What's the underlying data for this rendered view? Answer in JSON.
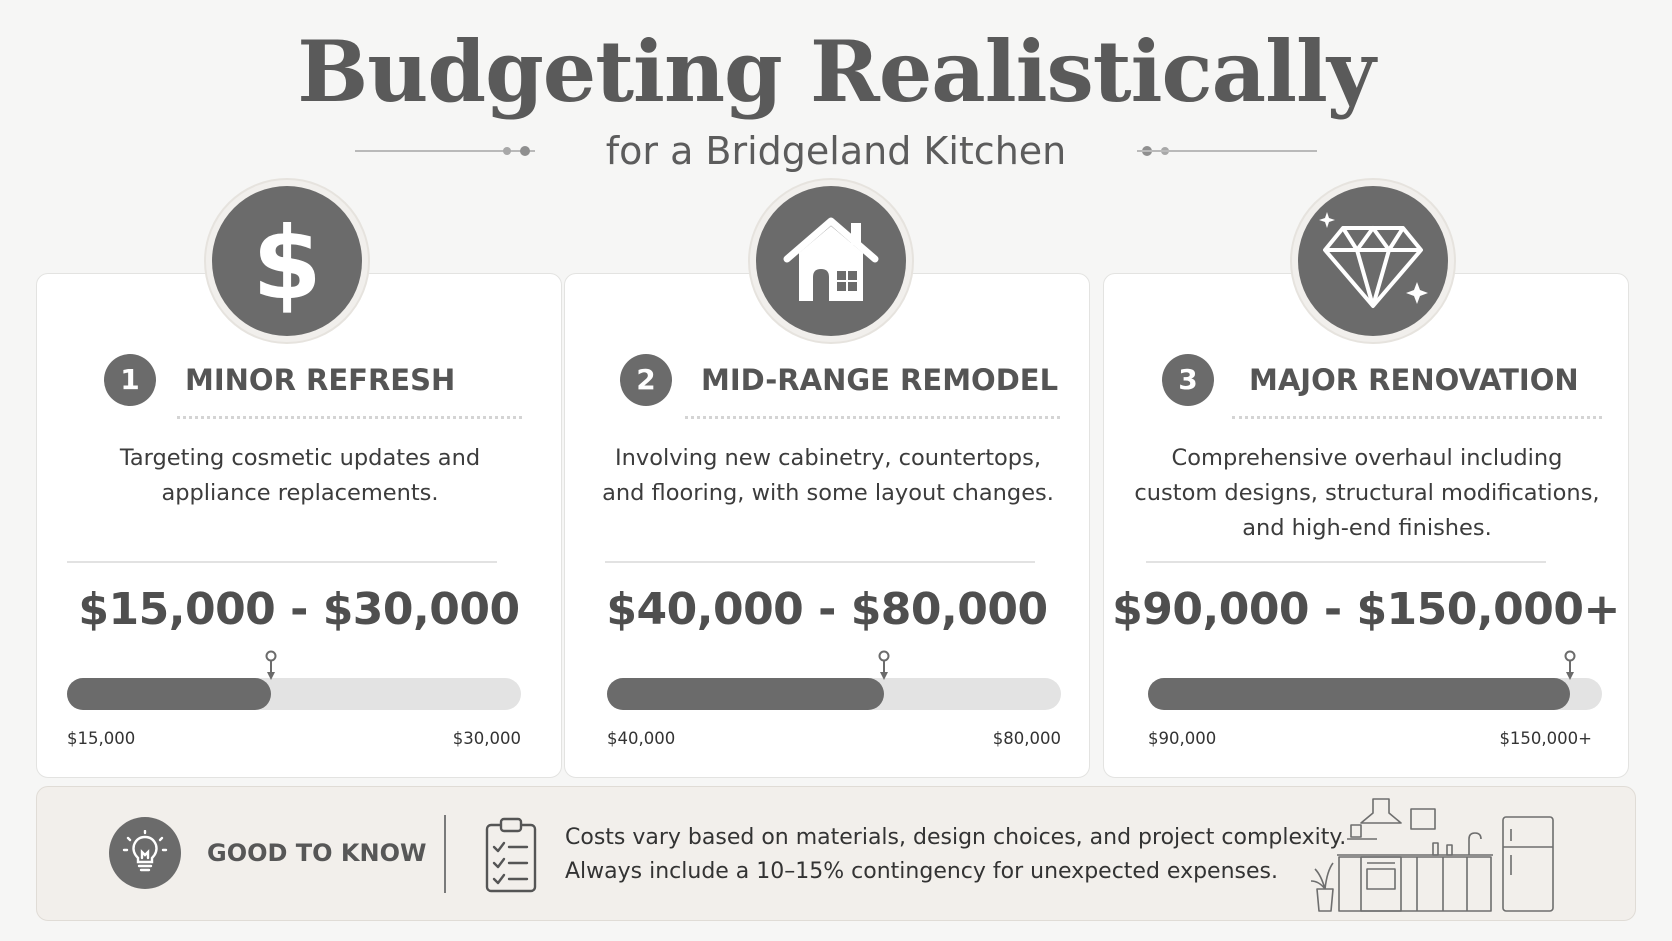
{
  "title": "Budgeting Realistically",
  "subtitle": "for a Bridgeland Kitchen",
  "tiers": [
    {
      "number": "1",
      "heading": "MINOR REFRESH",
      "icon": "dollar-icon",
      "description": "Targeting cosmetic updates and appliance replacements.",
      "price": "$15,000 - $30,000",
      "range_min": "$15,000",
      "range_max": "$30,000",
      "fill_fraction": 0.45
    },
    {
      "number": "2",
      "heading": "MID-RANGE REMODEL",
      "icon": "house-icon",
      "description": "Involving new cabinetry, countertops, and flooring, with some layout changes.",
      "price": "$40,000 - $80,000",
      "range_min": "$40,000",
      "range_max": "$80,000",
      "fill_fraction": 0.61
    },
    {
      "number": "3",
      "heading": "MAJOR RENOVATION",
      "icon": "diamond-icon",
      "description": "Comprehensive overhaul including custom designs, structural modifications, and high-end finishes.",
      "price": "$90,000 - $150,000+",
      "range_min": "$90,000",
      "range_max": "$150,000+",
      "fill_fraction": 0.93
    }
  ],
  "good_to_know": {
    "label": "GOOD TO KNOW",
    "line1": "Costs vary based on materials, design choices, and project complexity.",
    "line2": "Always include a 10–15% contingency for unexpected expenses.",
    "icons": [
      "lightbulb-icon",
      "checklist-icon",
      "kitchen-illustration"
    ]
  },
  "colors": {
    "accent": "#6b6b6b",
    "track": "#e3e3e3",
    "background": "#f6f6f5",
    "note_bg": "#f2efeb"
  }
}
